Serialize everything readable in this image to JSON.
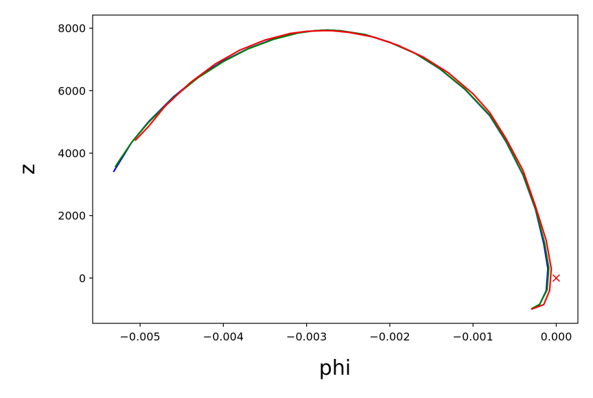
{
  "chart_data": {
    "type": "line",
    "xlabel": "phi",
    "ylabel": "z",
    "xlim": [
      -0.00557,
      0.00026
    ],
    "ylim": [
      -1450,
      8420
    ],
    "grid": false,
    "x_ticks": [
      -0.005,
      -0.004,
      -0.003,
      -0.002,
      -0.001,
      0.0
    ],
    "x_tick_labels": [
      "−0.005",
      "−0.004",
      "−0.003",
      "−0.002",
      "−0.001",
      "0.000"
    ],
    "y_ticks": [
      0,
      2000,
      4000,
      6000,
      8000
    ],
    "y_tick_labels": [
      "0",
      "2000",
      "4000",
      "6000",
      "8000"
    ],
    "series": [
      {
        "color": "#0000ff",
        "x": [
          -0.00532,
          -0.00525,
          -0.0051,
          -0.0049,
          -0.0046,
          -0.0043,
          -0.004,
          -0.0037,
          -0.0034,
          -0.0031,
          -0.0029,
          -0.00275,
          -0.0026,
          -0.0023,
          -0.002,
          -0.0017,
          -0.0014,
          -0.0011,
          -0.0008,
          -0.0006,
          -0.0004,
          -0.00025,
          -0.00015,
          -0.0001,
          -0.00012,
          -0.0002,
          -0.0003
        ],
        "y": [
          3400,
          3700,
          4350,
          5000,
          5800,
          6450,
          6950,
          7350,
          7650,
          7850,
          7920,
          7940,
          7920,
          7800,
          7550,
          7200,
          6700,
          6050,
          5200,
          4350,
          3300,
          2200,
          1100,
          300,
          -400,
          -850,
          -1000
        ]
      },
      {
        "color": "#008000",
        "x": [
          -0.0053,
          -0.00524,
          -0.0051,
          -0.0049,
          -0.0046,
          -0.0043,
          -0.004,
          -0.0037,
          -0.0034,
          -0.0031,
          -0.0029,
          -0.00275,
          -0.0026,
          -0.0023,
          -0.002,
          -0.0017,
          -0.0014,
          -0.0011,
          -0.0008,
          -0.0006,
          -0.0004,
          -0.00025,
          -0.00014,
          -9e-05,
          -0.00011,
          -0.0002,
          -0.0003
        ],
        "y": [
          3550,
          3800,
          4350,
          4980,
          5780,
          6420,
          6930,
          7340,
          7640,
          7850,
          7920,
          7940,
          7920,
          7800,
          7550,
          7200,
          6710,
          6060,
          5220,
          4370,
          3320,
          2220,
          1120,
          320,
          -380,
          -840,
          -990
        ]
      },
      {
        "color": "#ff0000",
        "x": [
          -0.00506,
          -0.0049,
          -0.0047,
          -0.0044,
          -0.0041,
          -0.0038,
          -0.0035,
          -0.0032,
          -0.003,
          -0.0028,
          -0.0027,
          -0.0025,
          -0.0022,
          -0.0019,
          -0.0016,
          -0.0013,
          -0.001,
          -0.0008,
          -0.0006,
          -0.0004,
          -0.00025,
          -0.00012,
          -6e-05,
          -8e-05,
          -0.00015,
          -0.0003
        ],
        "y": [
          4400,
          4850,
          5500,
          6250,
          6850,
          7300,
          7620,
          7830,
          7900,
          7920,
          7920,
          7870,
          7720,
          7450,
          7080,
          6580,
          5900,
          5300,
          4450,
          3450,
          2300,
          1200,
          300,
          -400,
          -850,
          -1000
        ]
      }
    ],
    "markers": [
      {
        "type": "x",
        "x": 0.0,
        "y": 0,
        "color": "#ff0000"
      }
    ]
  }
}
